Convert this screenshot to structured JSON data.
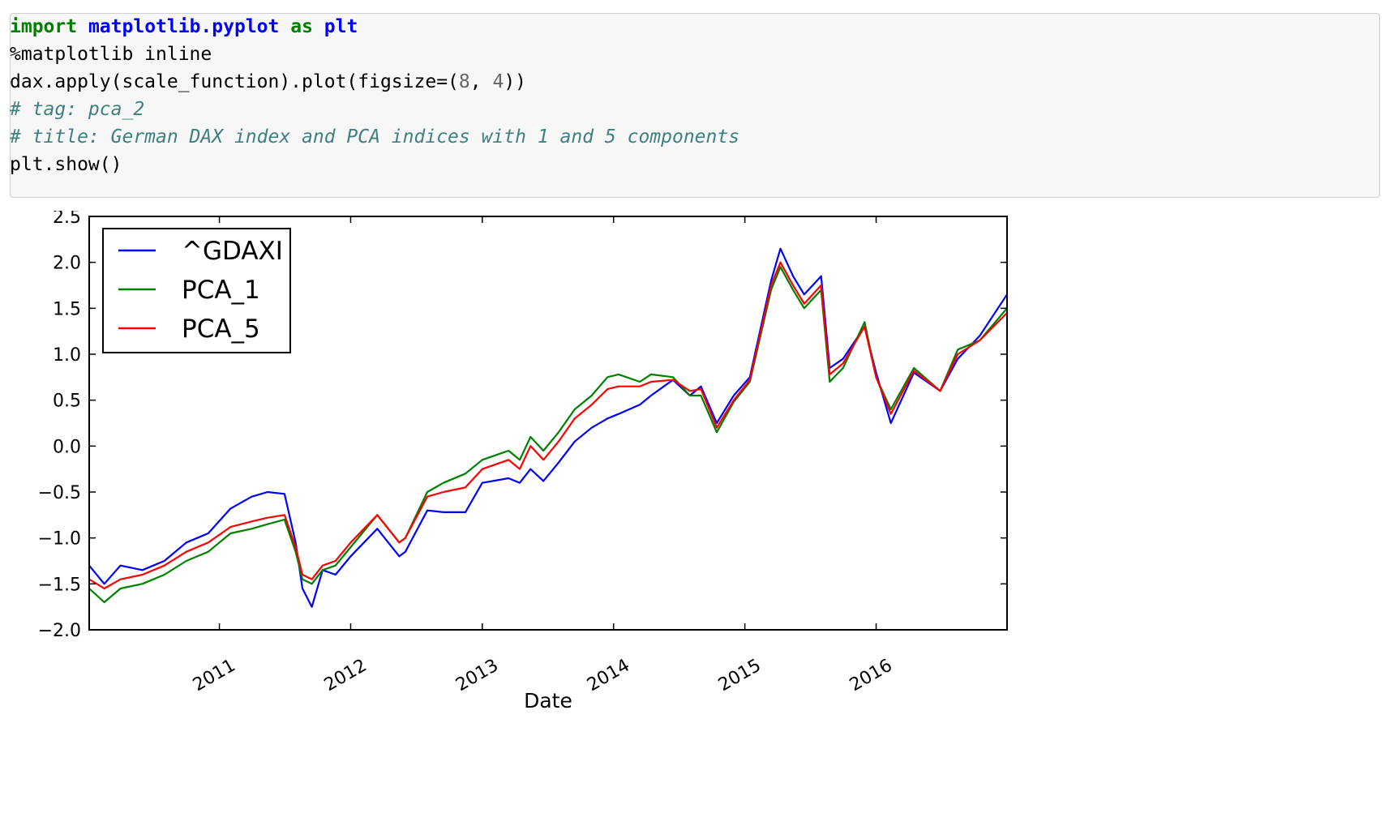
{
  "code_cell": {
    "lines": [
      {
        "kind": "import",
        "kw1": "import",
        "module": "matplotlib.pyplot",
        "kw2": "as",
        "alias": "plt"
      },
      {
        "kind": "plain",
        "text": "%matplotlib inline"
      },
      {
        "kind": "call",
        "pre": "dax.apply(scale_function).plot(figsize=(",
        "n1": "8",
        "mid": ", ",
        "n2": "4",
        "post": "))"
      },
      {
        "kind": "comment",
        "text": "# tag: pca_2"
      },
      {
        "kind": "comment",
        "text": "# title: German DAX index and PCA indices with 1 and 5 components"
      },
      {
        "kind": "plain",
        "text": "plt.show()"
      }
    ]
  },
  "chart_data": {
    "type": "line",
    "title": "",
    "xlabel": "Date",
    "ylabel": "",
    "xlim": [
      "2010-01-04",
      "2016-12-30"
    ],
    "ylim": [
      -2.0,
      2.5
    ],
    "y_ticks": [
      "2.5",
      "2.0",
      "1.5",
      "1.0",
      "0.5",
      "0.0",
      "−0.5",
      "−1.0",
      "−1.5",
      "−2.0"
    ],
    "x_ticks": [
      "2011",
      "2012",
      "2013",
      "2014",
      "2015",
      "2016"
    ],
    "grid": false,
    "legend_position": "upper-left",
    "series": [
      {
        "name": "^GDAXI",
        "color": "#0000ff",
        "x": [
          "2010-01-04",
          "2010-02-15",
          "2010-04-01",
          "2010-06-01",
          "2010-08-01",
          "2010-10-01",
          "2010-12-01",
          "2011-02-01",
          "2011-04-01",
          "2011-05-15",
          "2011-07-01",
          "2011-08-01",
          "2011-08-20",
          "2011-09-15",
          "2011-10-15",
          "2011-11-20",
          "2012-01-01",
          "2012-03-15",
          "2012-05-15",
          "2012-06-01",
          "2012-08-01",
          "2012-09-15",
          "2012-11-15",
          "2013-01-01",
          "2013-03-15",
          "2013-04-15",
          "2013-05-15",
          "2013-06-20",
          "2013-08-01",
          "2013-09-15",
          "2013-11-01",
          "2013-12-15",
          "2014-01-15",
          "2014-03-15",
          "2014-04-15",
          "2014-06-15",
          "2014-08-01",
          "2014-09-01",
          "2014-10-15",
          "2014-12-01",
          "2015-01-15",
          "2015-03-15",
          "2015-04-10",
          "2015-05-15",
          "2015-06-15",
          "2015-08-01",
          "2015-08-25",
          "2015-10-01",
          "2015-11-30",
          "2016-01-01",
          "2016-02-11",
          "2016-04-15",
          "2016-06-27",
          "2016-08-15",
          "2016-10-15",
          "2016-12-30"
        ],
        "y": [
          -1.3,
          -1.5,
          -1.3,
          -1.35,
          -1.25,
          -1.05,
          -0.95,
          -0.68,
          -0.55,
          -0.5,
          -0.52,
          -1.05,
          -1.55,
          -1.75,
          -1.35,
          -1.4,
          -1.2,
          -0.9,
          -1.2,
          -1.15,
          -0.7,
          -0.72,
          -0.72,
          -0.4,
          -0.35,
          -0.4,
          -0.25,
          -0.38,
          -0.18,
          0.05,
          0.2,
          0.3,
          0.35,
          0.45,
          0.55,
          0.72,
          0.55,
          0.65,
          0.25,
          0.55,
          0.75,
          1.8,
          2.15,
          1.85,
          1.65,
          1.85,
          0.85,
          0.95,
          1.3,
          0.8,
          0.25,
          0.8,
          0.6,
          0.95,
          1.2,
          1.65
        ]
      },
      {
        "name": "PCA_1",
        "color": "#008000",
        "x": [
          "2010-01-04",
          "2010-02-15",
          "2010-04-01",
          "2010-06-01",
          "2010-08-01",
          "2010-10-01",
          "2010-12-01",
          "2011-02-01",
          "2011-04-01",
          "2011-05-15",
          "2011-07-01",
          "2011-08-01",
          "2011-08-20",
          "2011-09-15",
          "2011-10-15",
          "2011-11-20",
          "2012-01-01",
          "2012-03-15",
          "2012-05-15",
          "2012-06-01",
          "2012-08-01",
          "2012-09-15",
          "2012-11-15",
          "2013-01-01",
          "2013-03-15",
          "2013-04-15",
          "2013-05-15",
          "2013-06-20",
          "2013-08-01",
          "2013-09-15",
          "2013-11-01",
          "2013-12-15",
          "2014-01-15",
          "2014-03-15",
          "2014-04-15",
          "2014-06-15",
          "2014-08-01",
          "2014-09-01",
          "2014-10-15",
          "2014-12-01",
          "2015-01-15",
          "2015-03-15",
          "2015-04-10",
          "2015-05-15",
          "2015-06-15",
          "2015-08-01",
          "2015-08-25",
          "2015-10-01",
          "2015-11-30",
          "2016-01-01",
          "2016-02-11",
          "2016-04-15",
          "2016-06-27",
          "2016-08-15",
          "2016-10-15",
          "2016-12-30"
        ],
        "y": [
          -1.55,
          -1.7,
          -1.55,
          -1.5,
          -1.4,
          -1.25,
          -1.15,
          -0.95,
          -0.9,
          -0.85,
          -0.8,
          -1.15,
          -1.45,
          -1.5,
          -1.35,
          -1.3,
          -1.1,
          -0.75,
          -1.05,
          -1.0,
          -0.5,
          -0.4,
          -0.3,
          -0.15,
          -0.05,
          -0.15,
          0.1,
          -0.05,
          0.15,
          0.4,
          0.55,
          0.75,
          0.78,
          0.7,
          0.78,
          0.75,
          0.55,
          0.55,
          0.15,
          0.48,
          0.7,
          1.7,
          1.95,
          1.7,
          1.5,
          1.7,
          0.7,
          0.85,
          1.35,
          0.75,
          0.4,
          0.85,
          0.6,
          1.05,
          1.15,
          1.5
        ]
      },
      {
        "name": "PCA_5",
        "color": "#ff0000",
        "x": [
          "2010-01-04",
          "2010-02-15",
          "2010-04-01",
          "2010-06-01",
          "2010-08-01",
          "2010-10-01",
          "2010-12-01",
          "2011-02-01",
          "2011-04-01",
          "2011-05-15",
          "2011-07-01",
          "2011-08-01",
          "2011-08-20",
          "2011-09-15",
          "2011-10-15",
          "2011-11-20",
          "2012-01-01",
          "2012-03-15",
          "2012-05-15",
          "2012-06-01",
          "2012-08-01",
          "2012-09-15",
          "2012-11-15",
          "2013-01-01",
          "2013-03-15",
          "2013-04-15",
          "2013-05-15",
          "2013-06-20",
          "2013-08-01",
          "2013-09-15",
          "2013-11-01",
          "2013-12-15",
          "2014-01-15",
          "2014-03-15",
          "2014-04-15",
          "2014-06-15",
          "2014-08-01",
          "2014-09-01",
          "2014-10-15",
          "2014-12-01",
          "2015-01-15",
          "2015-03-15",
          "2015-04-10",
          "2015-05-15",
          "2015-06-15",
          "2015-08-01",
          "2015-08-25",
          "2015-10-01",
          "2015-11-30",
          "2016-01-01",
          "2016-02-11",
          "2016-04-15",
          "2016-06-27",
          "2016-08-15",
          "2016-10-15",
          "2016-12-30"
        ],
        "y": [
          -1.45,
          -1.55,
          -1.45,
          -1.4,
          -1.3,
          -1.15,
          -1.05,
          -0.88,
          -0.82,
          -0.78,
          -0.75,
          -1.1,
          -1.4,
          -1.45,
          -1.3,
          -1.25,
          -1.05,
          -0.75,
          -1.05,
          -1.0,
          -0.55,
          -0.5,
          -0.45,
          -0.25,
          -0.15,
          -0.25,
          0.0,
          -0.15,
          0.05,
          0.3,
          0.45,
          0.62,
          0.65,
          0.65,
          0.7,
          0.72,
          0.6,
          0.62,
          0.2,
          0.5,
          0.72,
          1.75,
          2.0,
          1.75,
          1.55,
          1.75,
          0.78,
          0.9,
          1.3,
          0.75,
          0.35,
          0.82,
          0.6,
          1.0,
          1.15,
          1.45
        ]
      }
    ]
  }
}
